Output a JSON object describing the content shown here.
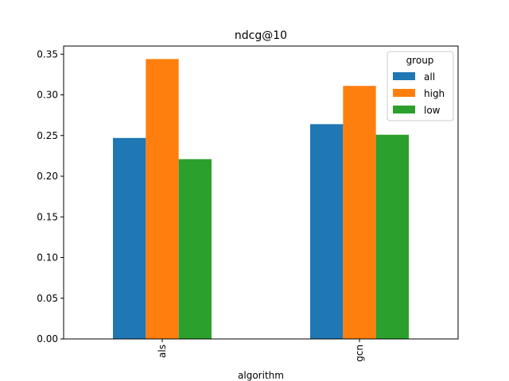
{
  "chart_data": {
    "type": "bar",
    "title": "ndcg@10",
    "xlabel": "algorithm",
    "ylabel": "",
    "categories": [
      "als",
      "gcn"
    ],
    "series": [
      {
        "name": "all",
        "color": "#1f77b4",
        "values": [
          0.247,
          0.264
        ]
      },
      {
        "name": "high",
        "color": "#ff7f0e",
        "values": [
          0.344,
          0.311
        ]
      },
      {
        "name": "low",
        "color": "#2ca02c",
        "values": [
          0.221,
          0.251
        ]
      }
    ],
    "ylim": [
      0,
      0.36
    ],
    "yticks": [
      "0.00",
      "0.05",
      "0.10",
      "0.15",
      "0.20",
      "0.25",
      "0.30",
      "0.35"
    ],
    "legend": {
      "title": "group",
      "placement": "top-right"
    },
    "grid": false
  }
}
